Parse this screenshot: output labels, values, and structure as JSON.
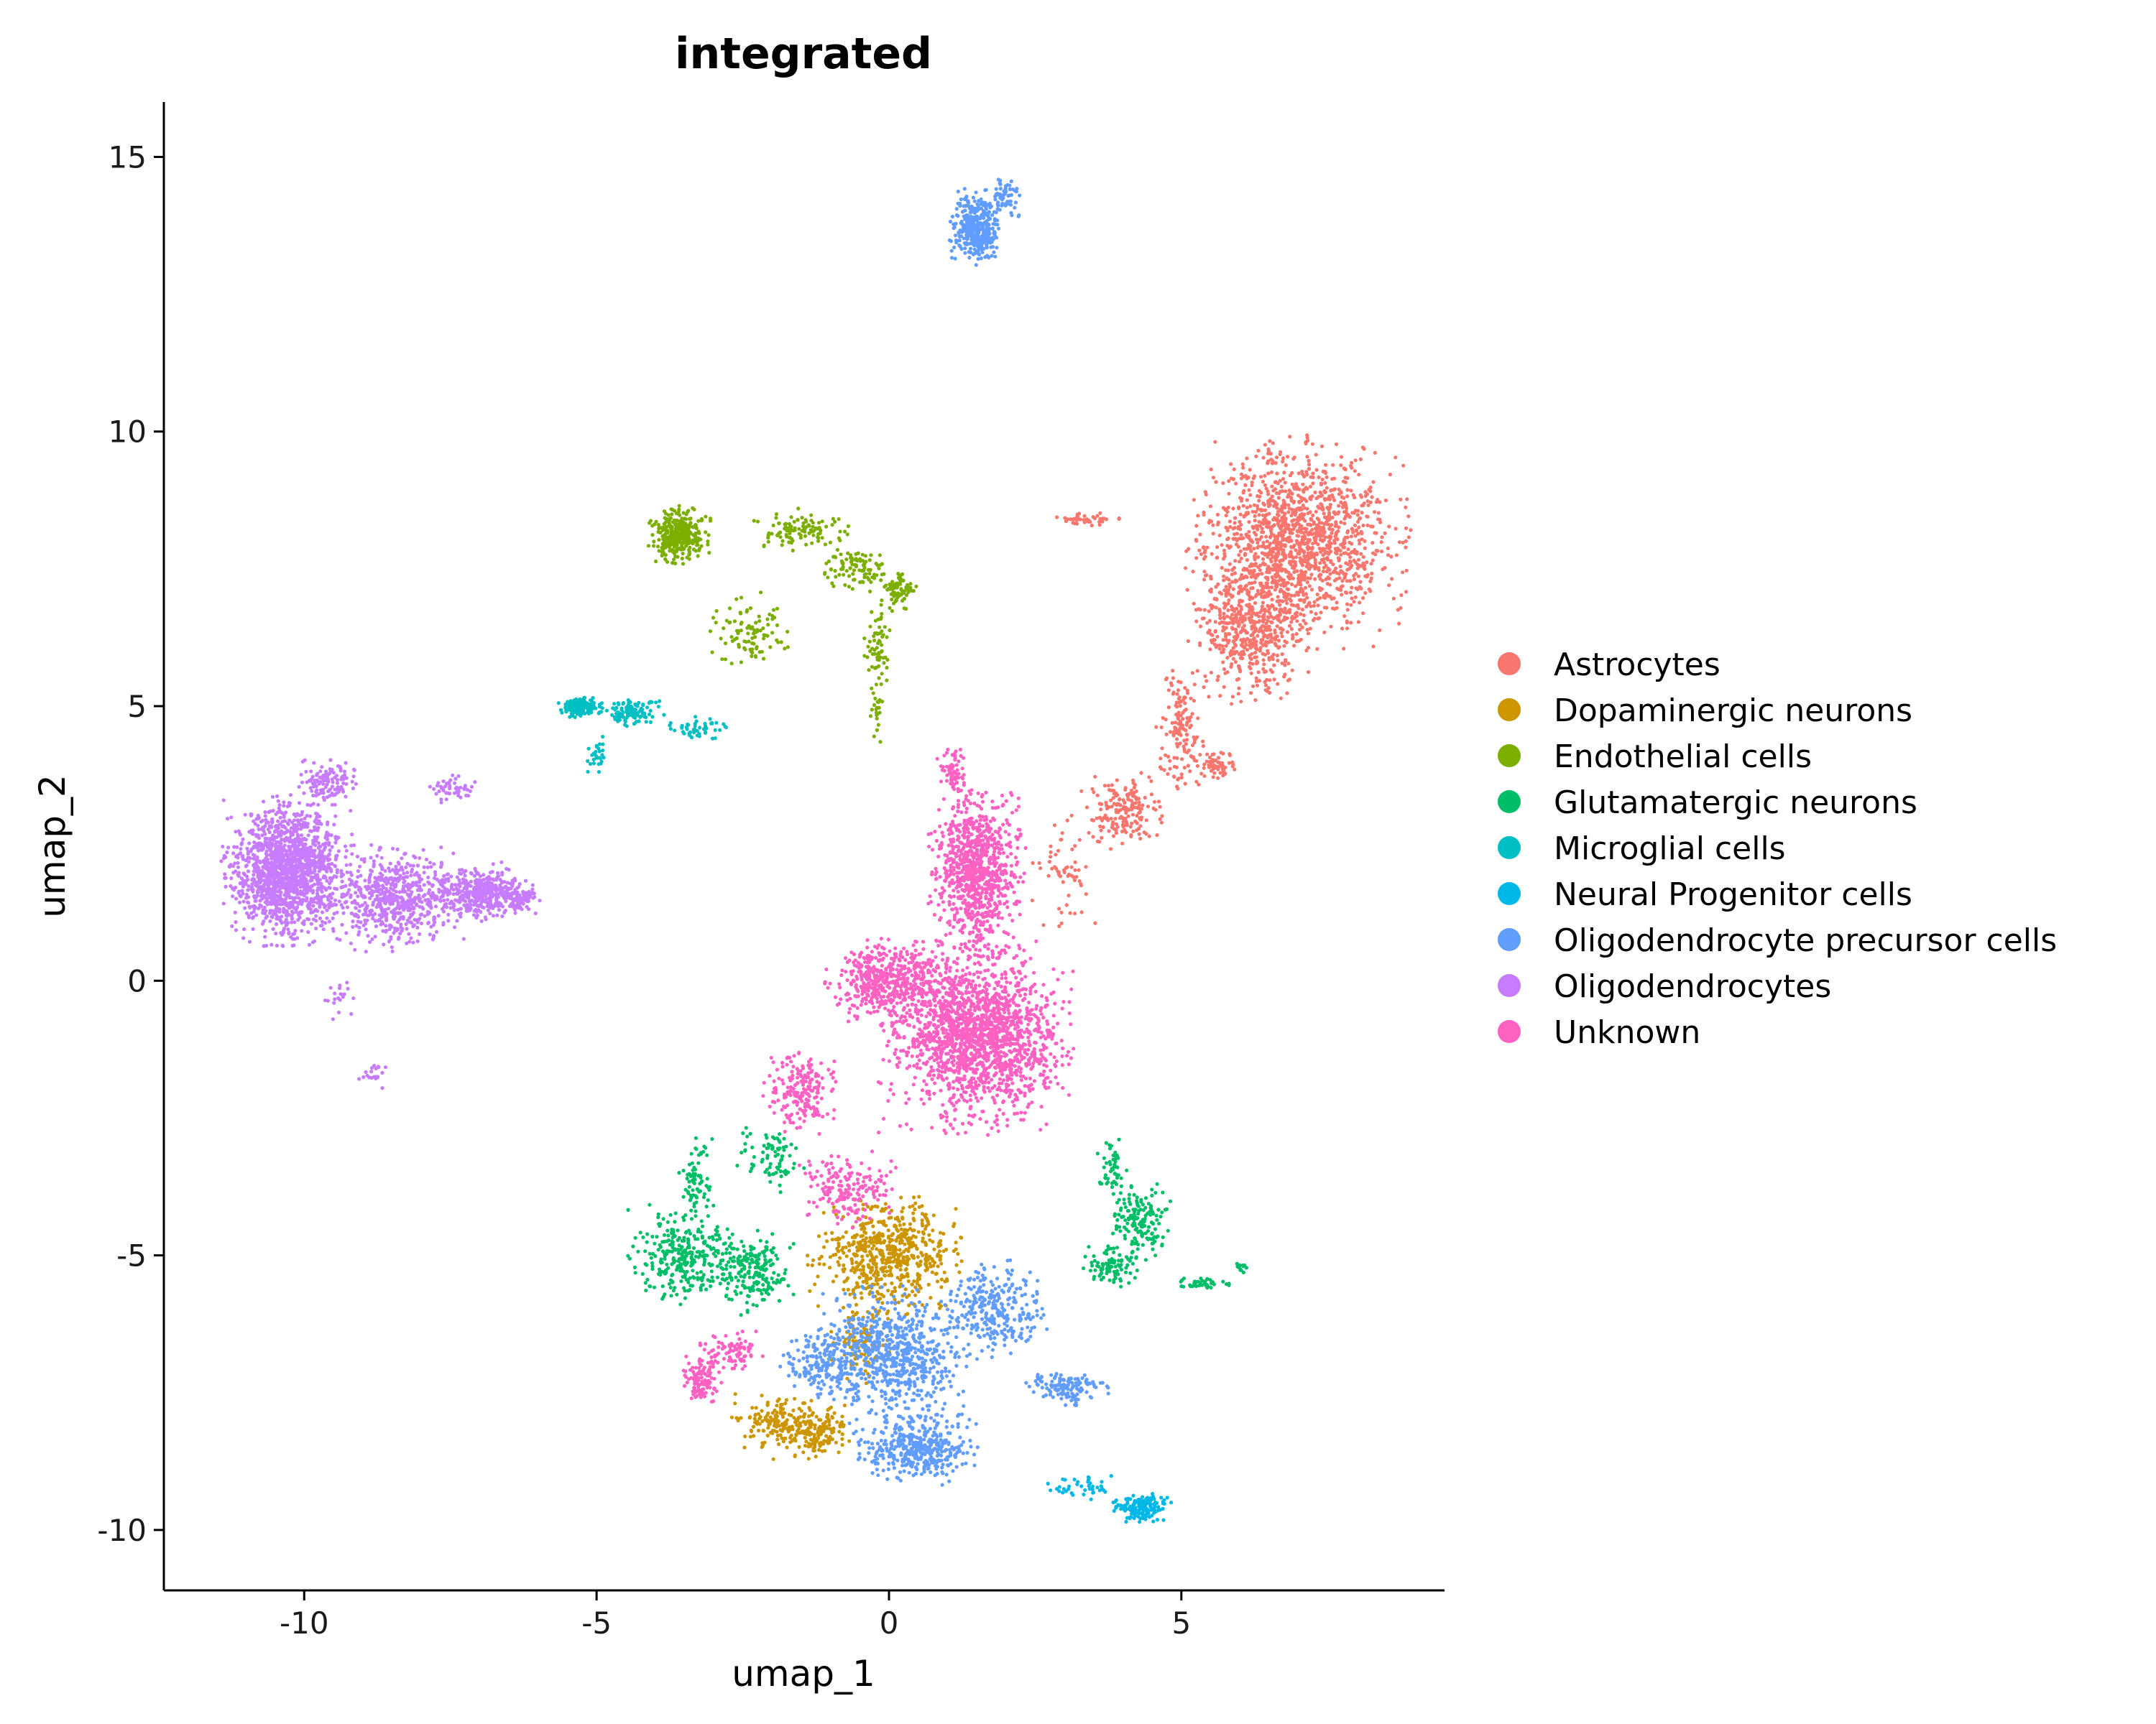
{
  "chart_data": {
    "type": "scatter",
    "title": "integrated",
    "xlabel": "umap_1",
    "ylabel": "umap_2",
    "xlim": [
      -12.4,
      9.5
    ],
    "ylim": [
      -11.1,
      16.0
    ],
    "x_ticks": [
      -10,
      -5,
      0,
      5
    ],
    "x_tick_labels": [
      "-10",
      "-5",
      "0",
      "5"
    ],
    "y_ticks": [
      15,
      10,
      5,
      0,
      -5,
      -10
    ],
    "y_tick_labels": [
      "15",
      "10",
      "5",
      "0",
      "-5",
      "-10"
    ],
    "grid": false,
    "legend_position": "right",
    "series": [
      {
        "name": "Astrocytes",
        "color": "#F8766D",
        "clusters": [
          [
            7.0,
            8.0,
            1.4,
            1.4,
            1500
          ],
          [
            6.2,
            6.4,
            0.8,
            1.0,
            500
          ],
          [
            5.0,
            4.6,
            0.35,
            0.9,
            150
          ],
          [
            4.0,
            3.1,
            0.6,
            0.5,
            180
          ],
          [
            5.6,
            3.9,
            0.3,
            0.2,
            60
          ],
          [
            3.4,
            8.4,
            0.4,
            0.1,
            40
          ],
          [
            3.0,
            2.0,
            0.4,
            0.8,
            60
          ]
        ]
      },
      {
        "name": "Dopaminergic neurons",
        "color": "#CD9600",
        "clusters": [
          [
            0.0,
            -5.0,
            1.0,
            0.8,
            600
          ],
          [
            -1.3,
            -8.2,
            0.5,
            0.4,
            180
          ],
          [
            -2.0,
            -8.0,
            0.5,
            0.4,
            120
          ],
          [
            -0.5,
            -6.5,
            0.4,
            0.6,
            100
          ]
        ]
      },
      {
        "name": "Endothelial cells",
        "color": "#7CAE00",
        "clusters": [
          [
            -3.6,
            8.1,
            0.4,
            0.4,
            350
          ],
          [
            -1.5,
            8.2,
            0.6,
            0.3,
            110
          ],
          [
            -0.6,
            7.5,
            0.5,
            0.3,
            100
          ],
          [
            0.2,
            7.1,
            0.2,
            0.3,
            70
          ],
          [
            -2.4,
            6.4,
            0.6,
            0.5,
            100
          ],
          [
            -0.2,
            6.1,
            0.2,
            0.6,
            60
          ],
          [
            -0.2,
            5.0,
            0.1,
            0.5,
            25
          ]
        ]
      },
      {
        "name": "Glutamatergic neurons",
        "color": "#00BE67",
        "clusters": [
          [
            -3.5,
            -5.0,
            0.7,
            0.7,
            320
          ],
          [
            -2.3,
            -5.3,
            0.5,
            0.6,
            200
          ],
          [
            -3.3,
            -3.6,
            0.25,
            0.6,
            70
          ],
          [
            -2.0,
            -3.2,
            0.5,
            0.5,
            80
          ],
          [
            4.3,
            -4.4,
            0.4,
            0.5,
            160
          ],
          [
            3.8,
            -5.2,
            0.4,
            0.3,
            90
          ],
          [
            3.8,
            -3.4,
            0.2,
            0.4,
            50
          ],
          [
            5.4,
            -5.5,
            0.4,
            0.1,
            40
          ],
          [
            6.0,
            -5.2,
            0.1,
            0.1,
            15
          ]
        ]
      },
      {
        "name": "Microglial cells",
        "color": "#00BFC4",
        "clusters": [
          [
            -5.3,
            5.0,
            0.3,
            0.15,
            160
          ],
          [
            -4.4,
            4.9,
            0.4,
            0.2,
            120
          ],
          [
            -3.3,
            4.6,
            0.5,
            0.15,
            50
          ],
          [
            -5.0,
            4.1,
            0.15,
            0.3,
            30
          ]
        ]
      },
      {
        "name": "Neural Progenitor cells",
        "color": "#00B8E7",
        "clusters": [
          [
            4.3,
            -9.6,
            0.4,
            0.2,
            160
          ],
          [
            3.3,
            -9.2,
            0.5,
            0.2,
            40
          ]
        ]
      },
      {
        "name": "Oligodendrocyte precursor cells",
        "color": "#619CFF",
        "clusters": [
          [
            1.5,
            13.7,
            0.35,
            0.55,
            380
          ],
          [
            2.0,
            14.3,
            0.2,
            0.3,
            60
          ],
          [
            0.0,
            -6.8,
            1.0,
            0.9,
            700
          ],
          [
            0.5,
            -8.5,
            0.8,
            0.5,
            400
          ],
          [
            1.8,
            -6.0,
            0.7,
            0.7,
            300
          ],
          [
            3.0,
            -7.4,
            0.6,
            0.25,
            130
          ],
          [
            -1.2,
            -7.0,
            0.5,
            0.5,
            150
          ]
        ]
      },
      {
        "name": "Oligodendrocytes",
        "color": "#C77CFF",
        "clusters": [
          [
            -10.3,
            2.0,
            0.8,
            1.0,
            1500
          ],
          [
            -8.5,
            1.5,
            0.9,
            0.7,
            600
          ],
          [
            -7.0,
            1.6,
            0.7,
            0.4,
            400
          ],
          [
            -9.6,
            3.6,
            0.4,
            0.3,
            120
          ],
          [
            -7.5,
            3.5,
            0.3,
            0.2,
            50
          ],
          [
            -6.3,
            1.5,
            0.3,
            0.2,
            80
          ],
          [
            -8.8,
            -1.7,
            0.2,
            0.2,
            20
          ],
          [
            -9.4,
            -0.3,
            0.2,
            0.3,
            20
          ]
        ]
      },
      {
        "name": "Unknown",
        "color": "#FF61C3",
        "clusters": [
          [
            1.5,
            2.0,
            0.6,
            1.2,
            900
          ],
          [
            1.5,
            -1.0,
            1.2,
            1.3,
            1800
          ],
          [
            0.0,
            0.0,
            0.8,
            0.6,
            500
          ],
          [
            -1.5,
            -2.0,
            0.5,
            0.6,
            200
          ],
          [
            -0.7,
            -3.8,
            0.6,
            0.5,
            180
          ],
          [
            -3.2,
            -7.3,
            0.3,
            0.4,
            110
          ],
          [
            -2.7,
            -6.8,
            0.4,
            0.3,
            90
          ],
          [
            1.1,
            3.8,
            0.2,
            0.4,
            70
          ]
        ]
      }
    ]
  }
}
